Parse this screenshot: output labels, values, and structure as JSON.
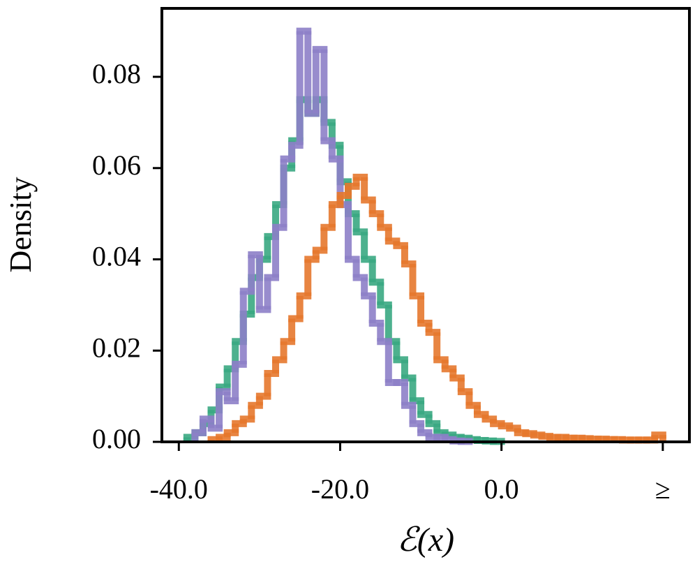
{
  "chart_data": {
    "type": "histogram",
    "xlabel": "ℰ(x)",
    "ylabel": "Density",
    "xlim": [
      -42.1,
      23.3
    ],
    "ylim": [
      0,
      0.095
    ],
    "xticks": [
      {
        "value": -40,
        "label": "-40.0"
      },
      {
        "value": -20,
        "label": "-20.0"
      },
      {
        "value": 0,
        "label": "0.0"
      },
      {
        "value": 20,
        "label": "≥"
      }
    ],
    "yticks": [
      {
        "value": 0,
        "label": "0.00"
      },
      {
        "value": 0.02,
        "label": "0.02"
      },
      {
        "value": 0.04,
        "label": "0.04"
      },
      {
        "value": 0.06,
        "label": "0.06"
      },
      {
        "value": 0.08,
        "label": "0.08"
      }
    ],
    "series": [
      {
        "color": "#3aa882",
        "bins": [
          -39,
          -38,
          -37,
          -36,
          -35,
          -34,
          -33,
          -32,
          -31,
          -30,
          -29,
          -28,
          -27,
          -26,
          -25,
          -24,
          -23,
          -22,
          -21,
          -20,
          -19,
          -18,
          -17,
          -16,
          -15,
          -14,
          -13,
          -12,
          -11,
          -10,
          -9,
          -8,
          -7,
          -6,
          -5,
          -4,
          -3,
          -2,
          -1,
          0
        ],
        "values": [
          0.001,
          0.002,
          0.004,
          0.007,
          0.012,
          0.016,
          0.022,
          0.028,
          0.036,
          0.04,
          0.045,
          0.052,
          0.06,
          0.066,
          0.075,
          0.072,
          0.075,
          0.07,
          0.065,
          0.057,
          0.05,
          0.046,
          0.04,
          0.035,
          0.03,
          0.022,
          0.018,
          0.014,
          0.009,
          0.006,
          0.004,
          0.002,
          0.0015,
          0.001,
          0.0008,
          0.0005,
          0.0003,
          0.0002,
          0.0001
        ]
      },
      {
        "color": "#8d80c8",
        "bins": [
          -38,
          -37,
          -36,
          -35,
          -34,
          -33,
          -32,
          -31,
          -30,
          -29,
          -28,
          -27,
          -26,
          -25,
          -24,
          -23,
          -22,
          -21,
          -20,
          -19,
          -18,
          -17,
          -16,
          -15,
          -14,
          -13,
          -12,
          -11,
          -10,
          -9,
          -8,
          -7,
          -6,
          -5,
          -4
        ],
        "values": [
          0.002,
          0.005,
          0.003,
          0.011,
          0.009,
          0.017,
          0.033,
          0.041,
          0.029,
          0.036,
          0.047,
          0.062,
          0.065,
          0.09,
          0.072,
          0.086,
          0.066,
          0.062,
          0.052,
          0.04,
          0.036,
          0.032,
          0.026,
          0.022,
          0.013,
          0.013,
          0.008,
          0.004,
          0.002,
          0.001,
          0.001,
          0.0005,
          0.0002,
          0.0001
        ]
      },
      {
        "color": "#e6782e",
        "bins": [
          -36,
          -35,
          -34,
          -33,
          -32,
          -31,
          -30,
          -29,
          -28,
          -27,
          -26,
          -25,
          -24,
          -23,
          -22,
          -21,
          -20,
          -19,
          -18,
          -17,
          -16,
          -15,
          -14,
          -13,
          -12,
          -11,
          -10,
          -9,
          -8,
          -7,
          -6,
          -5,
          -4,
          -3,
          -2,
          -1,
          0,
          1,
          2,
          3,
          4,
          5,
          6,
          7,
          8,
          9,
          10,
          11,
          12,
          13,
          14,
          15,
          16,
          17,
          18,
          19,
          20
        ],
        "values": [
          0.0005,
          0.001,
          0.002,
          0.004,
          0.005,
          0.008,
          0.01,
          0.015,
          0.018,
          0.022,
          0.027,
          0.032,
          0.04,
          0.042,
          0.047,
          0.052,
          0.054,
          0.056,
          0.058,
          0.053,
          0.05,
          0.047,
          0.044,
          0.043,
          0.039,
          0.032,
          0.026,
          0.024,
          0.018,
          0.016,
          0.014,
          0.011,
          0.008,
          0.006,
          0.005,
          0.004,
          0.0035,
          0.003,
          0.002,
          0.0018,
          0.0015,
          0.0012,
          0.001,
          0.001,
          0.0008,
          0.0008,
          0.0007,
          0.0006,
          0.0006,
          0.0005,
          0.0005,
          0.0004,
          0.0004,
          0.0004,
          0.0004,
          0.0015
        ]
      }
    ]
  }
}
